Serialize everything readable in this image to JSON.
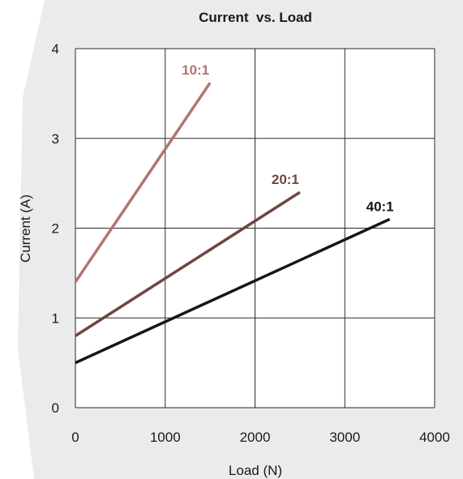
{
  "chart_data": {
    "type": "line",
    "title": "Current  vs. Load",
    "xlabel": "Load (N)",
    "ylabel": "Current (A)",
    "xlim": [
      0,
      4000
    ],
    "ylim": [
      0,
      4
    ],
    "xticks": [
      0,
      1000,
      2000,
      3000,
      4000
    ],
    "yticks": [
      0,
      1,
      2,
      3,
      4
    ],
    "xtick_labels": [
      "0",
      "1000",
      "2000",
      "3000",
      "4000"
    ],
    "ytick_labels": [
      "0",
      "1",
      "2",
      "3",
      "4"
    ],
    "grid": true,
    "legend": "none",
    "series": [
      {
        "name": "10:1",
        "color": "#b07670",
        "x": [
          0,
          1500
        ],
        "y": [
          1.4,
          3.62
        ]
      },
      {
        "name": "20:1",
        "color": "#6e4640",
        "x": [
          0,
          2500
        ],
        "y": [
          0.8,
          2.4
        ]
      },
      {
        "name": "40:1",
        "color": "#1e1412",
        "x": [
          0,
          3500
        ],
        "y": [
          0.5,
          2.1
        ]
      }
    ]
  },
  "colors": {
    "background_panel": "#e9ebed",
    "plot_background": "#ffffff",
    "grid": "#2a2a2a"
  }
}
